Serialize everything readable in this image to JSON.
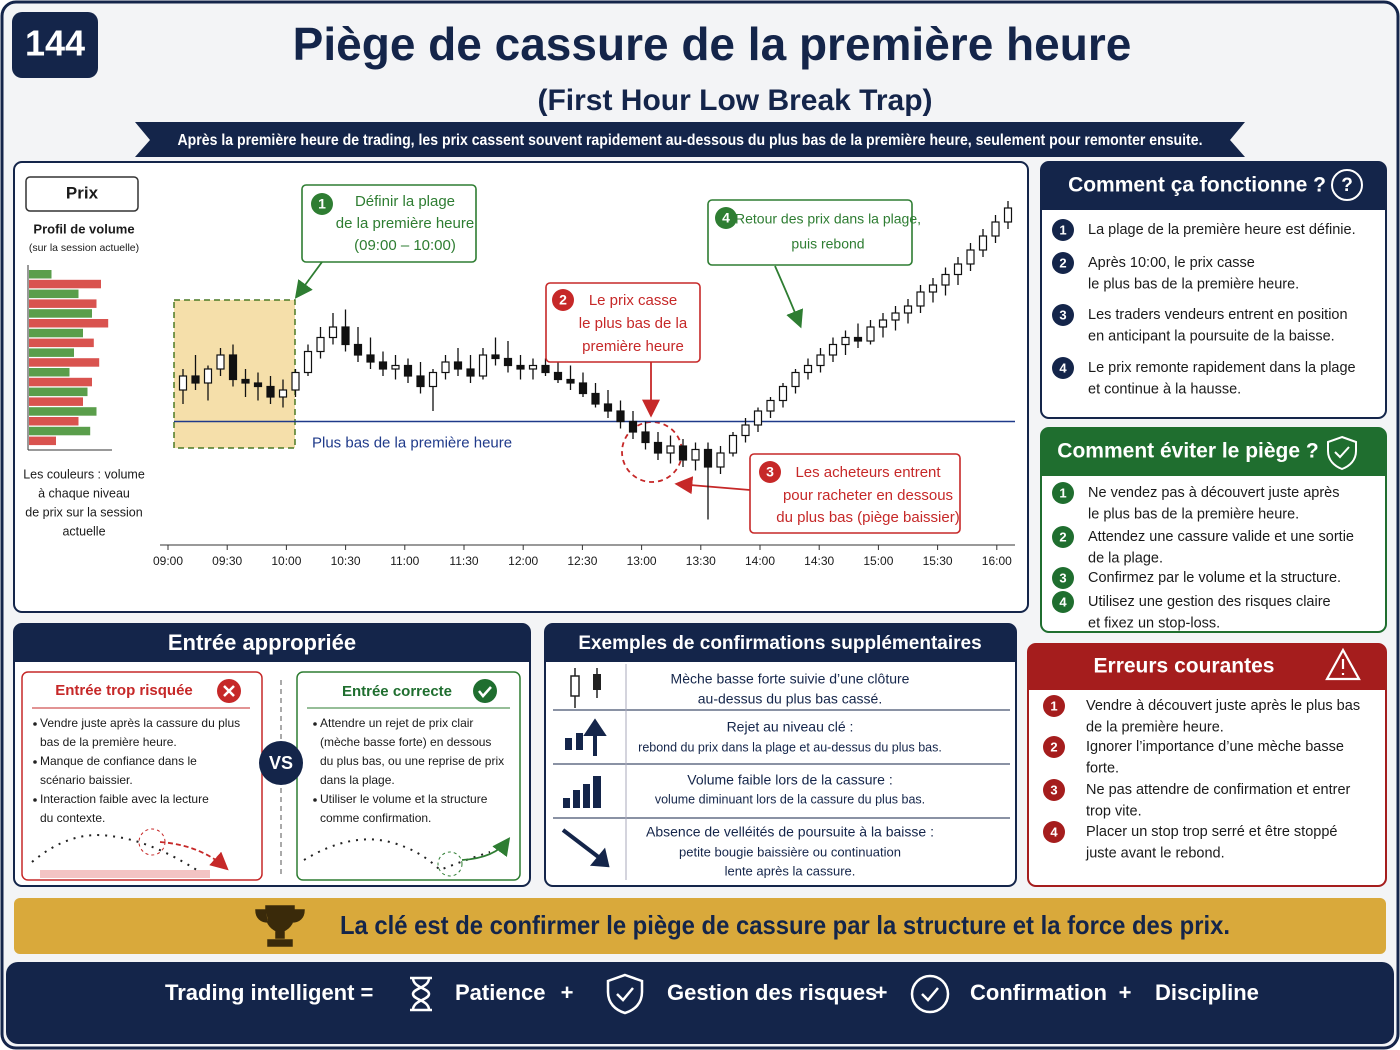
{
  "header": {
    "number": "144",
    "title": "Piège de cassure de la première heure",
    "subtitle": "(First Hour Low Break Trap)",
    "banner": "Après la première heure de trading, les prix cassent souvent rapidement au-dessous du plus bas de la première heure, seulement pour remonter ensuite."
  },
  "chart": {
    "type": "candlestick",
    "price_label": "Prix",
    "volume_title": "Profil de volume",
    "volume_subtitle": "(sur la session actuelle)",
    "volume_note": [
      "Les couleurs : volume",
      "à chaque niveau",
      "de prix sur la session",
      "actuelle"
    ],
    "volume_profile": {
      "xlim": [
        0,
        100
      ],
      "values": [
        25,
        80,
        55,
        75,
        70,
        88,
        60,
        72,
        50,
        78,
        45,
        70,
        65,
        60,
        75,
        55,
        68,
        30
      ],
      "colors": [
        "#5a9e4b",
        "#d9534f",
        "#5a9e4b",
        "#d9534f",
        "#5a9e4b",
        "#d9534f",
        "#5a9e4b",
        "#d9534f",
        "#5a9e4b",
        "#d9534f",
        "#5a9e4b",
        "#d9534f",
        "#5a9e4b",
        "#d9534f",
        "#5a9e4b",
        "#d9534f",
        "#5a9e4b",
        "#d9534f"
      ]
    },
    "x_ticks": [
      "09:00",
      "09:30",
      "10:00",
      "10:30",
      "11:00",
      "11:30",
      "12:00",
      "12:30",
      "13:00",
      "13:30",
      "14:00",
      "14:30",
      "15:00",
      "15:30",
      "16:00"
    ],
    "ylim": [
      0,
      100
    ],
    "first_hour_low": 31,
    "first_hour_low_label": "Plus bas de la première heure",
    "candles": [
      [
        40,
        46,
        36,
        44
      ],
      [
        44,
        50,
        40,
        42
      ],
      [
        42,
        47,
        37,
        46
      ],
      [
        46,
        52,
        44,
        50
      ],
      [
        50,
        53,
        41,
        43
      ],
      [
        43,
        46,
        38,
        42
      ],
      [
        42,
        45,
        37,
        41
      ],
      [
        41,
        44,
        36,
        38
      ],
      [
        38,
        43,
        35,
        40
      ],
      [
        40,
        46,
        38,
        45
      ],
      [
        45,
        53,
        44,
        51
      ],
      [
        51,
        58,
        49,
        55
      ],
      [
        55,
        62,
        53,
        58
      ],
      [
        58,
        63,
        51,
        53
      ],
      [
        53,
        58,
        48,
        50
      ],
      [
        50,
        55,
        46,
        48
      ],
      [
        48,
        51,
        44,
        46
      ],
      [
        46,
        50,
        43,
        47
      ],
      [
        47,
        49,
        42,
        44
      ],
      [
        44,
        48,
        39,
        41
      ],
      [
        41,
        46,
        34,
        45
      ],
      [
        45,
        50,
        43,
        48
      ],
      [
        48,
        52,
        44,
        46
      ],
      [
        46,
        50,
        42,
        44
      ],
      [
        44,
        52,
        43,
        50
      ],
      [
        50,
        55,
        47,
        49
      ],
      [
        49,
        54,
        45,
        47
      ],
      [
        47,
        50,
        43,
        46
      ],
      [
        46,
        49,
        43,
        47
      ],
      [
        47,
        49,
        44,
        45
      ],
      [
        45,
        48,
        42,
        43
      ],
      [
        43,
        47,
        40,
        42
      ],
      [
        42,
        45,
        38,
        39
      ],
      [
        39,
        42,
        35,
        36
      ],
      [
        36,
        40,
        32,
        34
      ],
      [
        34,
        37,
        29,
        31
      ],
      [
        31,
        34,
        26,
        28
      ],
      [
        28,
        31,
        23,
        25
      ],
      [
        25,
        28,
        20,
        22
      ],
      [
        22,
        27,
        19,
        24
      ],
      [
        24,
        26,
        18,
        20
      ],
      [
        20,
        25,
        17,
        23
      ],
      [
        23,
        25,
        3,
        18
      ],
      [
        18,
        24,
        16,
        22
      ],
      [
        22,
        28,
        21,
        27
      ],
      [
        27,
        32,
        25,
        30
      ],
      [
        30,
        35,
        28,
        34
      ],
      [
        34,
        38,
        32,
        37
      ],
      [
        37,
        42,
        35,
        41
      ],
      [
        41,
        46,
        39,
        45
      ],
      [
        45,
        49,
        43,
        47
      ],
      [
        47,
        52,
        45,
        50
      ],
      [
        50,
        55,
        48,
        53
      ],
      [
        53,
        57,
        50,
        55
      ],
      [
        55,
        59,
        52,
        54
      ],
      [
        54,
        60,
        53,
        58
      ],
      [
        58,
        62,
        55,
        60
      ],
      [
        60,
        64,
        57,
        62
      ],
      [
        62,
        66,
        59,
        64
      ],
      [
        64,
        70,
        62,
        68
      ],
      [
        68,
        72,
        65,
        70
      ],
      [
        70,
        75,
        67,
        73
      ],
      [
        73,
        78,
        70,
        76
      ],
      [
        76,
        82,
        74,
        80
      ],
      [
        80,
        86,
        78,
        84
      ],
      [
        84,
        90,
        82,
        88
      ],
      [
        88,
        94,
        86,
        92
      ]
    ],
    "callouts": [
      {
        "number": "1",
        "lines": [
          "Définir la plage",
          "de la première heure",
          "(09:00 – 10:00)"
        ]
      },
      {
        "number": "2",
        "lines": [
          "Le prix casse",
          "le plus bas de la",
          "première heure"
        ]
      },
      {
        "number": "3",
        "lines": [
          "Les acheteurs entrent",
          "pour racheter en dessous",
          "du plus bas (piège baissier)"
        ]
      },
      {
        "number": "4",
        "lines": [
          "Retour des prix dans la plage,",
          "puis rebond"
        ]
      }
    ]
  },
  "how_it_works": {
    "title": "Comment ça fonctionne ?",
    "items": [
      {
        "number": "1",
        "lines": [
          "La plage de la première heure est définie."
        ]
      },
      {
        "number": "2",
        "lines": [
          "Après 10:00, le prix casse",
          "le plus bas de la première heure."
        ]
      },
      {
        "number": "3",
        "lines": [
          "Les traders vendeurs entrent en position",
          "en anticipant la poursuite de la baisse."
        ]
      },
      {
        "number": "4",
        "lines": [
          "Le prix remonte rapidement dans la plage",
          "et continue à la hausse."
        ]
      }
    ]
  },
  "avoid": {
    "title": "Comment éviter le piège ?",
    "items": [
      {
        "number": "1",
        "lines": [
          "Ne vendez pas à découvert juste après",
          "le plus bas de la première heure."
        ]
      },
      {
        "number": "2",
        "lines": [
          "Attendez une cassure valide et une sortie",
          "de la plage."
        ]
      },
      {
        "number": "3",
        "lines": [
          "Confirmez par le volume et la structure."
        ]
      },
      {
        "number": "4",
        "lines": [
          "Utilisez une gestion des risques claire",
          "et fixez un stop-loss."
        ]
      }
    ]
  },
  "mistakes": {
    "title": "Erreurs courantes",
    "items": [
      {
        "number": "1",
        "lines": [
          "Vendre à découvert juste après le plus bas",
          "de la première heure."
        ]
      },
      {
        "number": "2",
        "lines": [
          "Ignorer l’importance d’une mèche basse",
          "forte."
        ]
      },
      {
        "number": "3",
        "lines": [
          "Ne pas attendre de confirmation et entrer",
          "trop vite."
        ]
      },
      {
        "number": "4",
        "lines": [
          "Placer un stop trop serré et être stoppé",
          "juste avant le rebond."
        ]
      }
    ]
  },
  "entry": {
    "title": "Entrée appropriée",
    "vs": "VS",
    "risky": {
      "title": "Entrée trop risquée",
      "bullets": [
        [
          "Vendre juste après la cassure du plus",
          "bas de la première heure."
        ],
        [
          "Manque de confiance dans le",
          "scénario baissier."
        ],
        [
          "Interaction faible avec la lecture",
          "du contexte."
        ]
      ]
    },
    "correct": {
      "title": "Entrée correcte",
      "bullets": [
        [
          "Attendre un rejet de prix clair",
          "(mèche basse forte) en dessous",
          "du plus bas, ou une reprise de prix",
          "dans la plage."
        ],
        [
          "Utiliser le volume et la structure",
          "comme confirmation."
        ]
      ]
    }
  },
  "confirmations": {
    "title": "Exemples de confirmations supplémentaires",
    "rows": [
      {
        "lines": [
          "Mèche basse forte suivie d’une clôture",
          "au-dessus du plus bas cassé."
        ]
      },
      {
        "lines": [
          "Rejet au niveau clé :",
          "rebond du prix dans la plage et au-dessus du plus bas."
        ]
      },
      {
        "lines": [
          "Volume faible lors de la cassure :",
          "volume diminuant lors de la cassure du plus bas."
        ]
      },
      {
        "lines": [
          "Absence de velléités de poursuite à la baisse :",
          "petite bougie baissière ou continuation",
          "lente après la cassure."
        ]
      }
    ]
  },
  "key_message": "La clé est de confirmer le piège de cassure par la structure et la force des prix.",
  "footer": {
    "label": "Trading intelligent =",
    "separator": "+",
    "items": [
      "Patience",
      "Gestion des risques",
      "Confirmation",
      "Discipline"
    ]
  }
}
